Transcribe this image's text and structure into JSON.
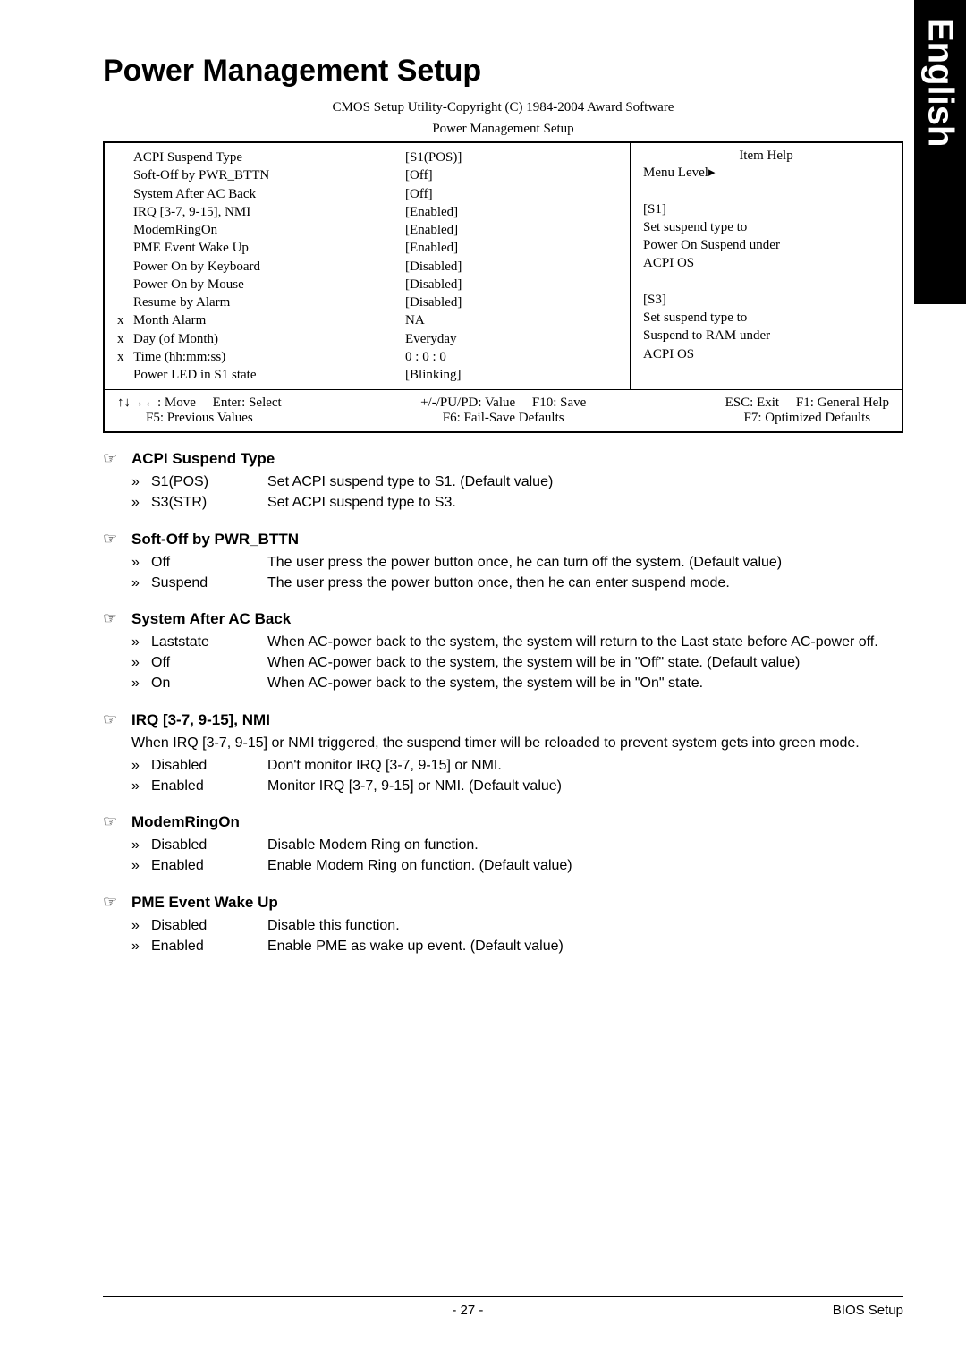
{
  "sideTab": "English",
  "title": "Power Management Setup",
  "subtitle1": "CMOS Setup Utility-Copyright (C) 1984-2004 Award Software",
  "subtitle2": "Power Management Setup",
  "bios": {
    "rows": [
      {
        "x": "",
        "label": "ACPI Suspend Type",
        "val": "[S1(POS)]"
      },
      {
        "x": "",
        "label": "Soft-Off by PWR_BTTN",
        "val": "[Off]"
      },
      {
        "x": "",
        "label": "System After AC Back",
        "val": "[Off]"
      },
      {
        "x": "",
        "label": "IRQ [3-7, 9-15], NMI",
        "val": "[Enabled]"
      },
      {
        "x": "",
        "label": "ModemRingOn",
        "val": "[Enabled]"
      },
      {
        "x": "",
        "label": "PME Event Wake Up",
        "val": "[Enabled]"
      },
      {
        "x": "",
        "label": "Power On by Keyboard",
        "val": "[Disabled]"
      },
      {
        "x": "",
        "label": "Power On by Mouse",
        "val": "[Disabled]"
      },
      {
        "x": "",
        "label": "Resume by Alarm",
        "val": "[Disabled]"
      },
      {
        "x": "x",
        "label": "Month Alarm",
        "val": "NA"
      },
      {
        "x": "x",
        "label": "Day (of Month)",
        "val": "Everyday"
      },
      {
        "x": "x",
        "label": "Time (hh:mm:ss)",
        "val": "0 : 0 : 0"
      },
      {
        "x": "",
        "label": "Power LED in S1 state",
        "val": "[Blinking]"
      }
    ],
    "help": {
      "title": "Item Help",
      "lines": [
        "Menu Level▸",
        "",
        "[S1]",
        "Set suspend type to",
        "Power On Suspend under",
        "ACPI OS",
        "",
        "[S3]",
        "Set suspend type to",
        "Suspend to RAM under",
        "ACPI OS"
      ]
    },
    "footer": {
      "c1a": "↑↓→←: Move",
      "c1b": "Enter: Select",
      "c2a": "+/-/PU/PD: Value",
      "c2b": "F10: Save",
      "c3a": "ESC: Exit",
      "c3b": "F1: General Help",
      "r2a": "F5: Previous Values",
      "r2b": "F6: Fail-Save Defaults",
      "r2c": "F7: Optimized Defaults"
    }
  },
  "sections": [
    {
      "head": "ACPI Suspend Type",
      "opts": [
        {
          "k": "S1(POS)",
          "v": "Set ACPI suspend type to S1. (Default value)"
        },
        {
          "k": "S3(STR)",
          "v": "Set ACPI suspend type to S3."
        }
      ]
    },
    {
      "head": "Soft-Off by PWR_BTTN",
      "opts": [
        {
          "k": "Off",
          "v": "The user press the power button once, he can turn off the system. (Default value)"
        },
        {
          "k": "Suspend",
          "v": "The user press the power button once, then he can enter suspend mode."
        }
      ]
    },
    {
      "head": "System After AC Back",
      "opts": [
        {
          "k": "Laststate",
          "v": "When AC-power back to the system, the system will return to the Last state before AC-power off."
        },
        {
          "k": "Off",
          "v": "When AC-power back to the system, the system will be in \"Off\" state. (Default value)"
        },
        {
          "k": "On",
          "v": "When AC-power back to the system, the system will be in \"On\" state."
        }
      ]
    },
    {
      "head": "IRQ [3-7, 9-15], NMI",
      "desc": "When IRQ [3-7, 9-15] or NMI triggered, the suspend timer will be reloaded to prevent system gets into green mode.",
      "opts": [
        {
          "k": "Disabled",
          "v": "Don't monitor IRQ [3-7, 9-15] or NMI."
        },
        {
          "k": "Enabled",
          "v": "Monitor IRQ [3-7, 9-15] or NMI. (Default value)"
        }
      ]
    },
    {
      "head": "ModemRingOn",
      "opts": [
        {
          "k": "Disabled",
          "v": "Disable Modem Ring on function."
        },
        {
          "k": "Enabled",
          "v": "Enable Modem Ring on function. (Default value)"
        }
      ]
    },
    {
      "head": "PME Event Wake Up",
      "opts": [
        {
          "k": "Disabled",
          "v": "Disable this function."
        },
        {
          "k": "Enabled",
          "v": "Enable PME as wake up event. (Default value)"
        }
      ]
    }
  ],
  "footer": {
    "page": "- 27 -",
    "label": "BIOS Setup"
  },
  "glyphs": {
    "hand": "☞",
    "bullet": "»"
  }
}
